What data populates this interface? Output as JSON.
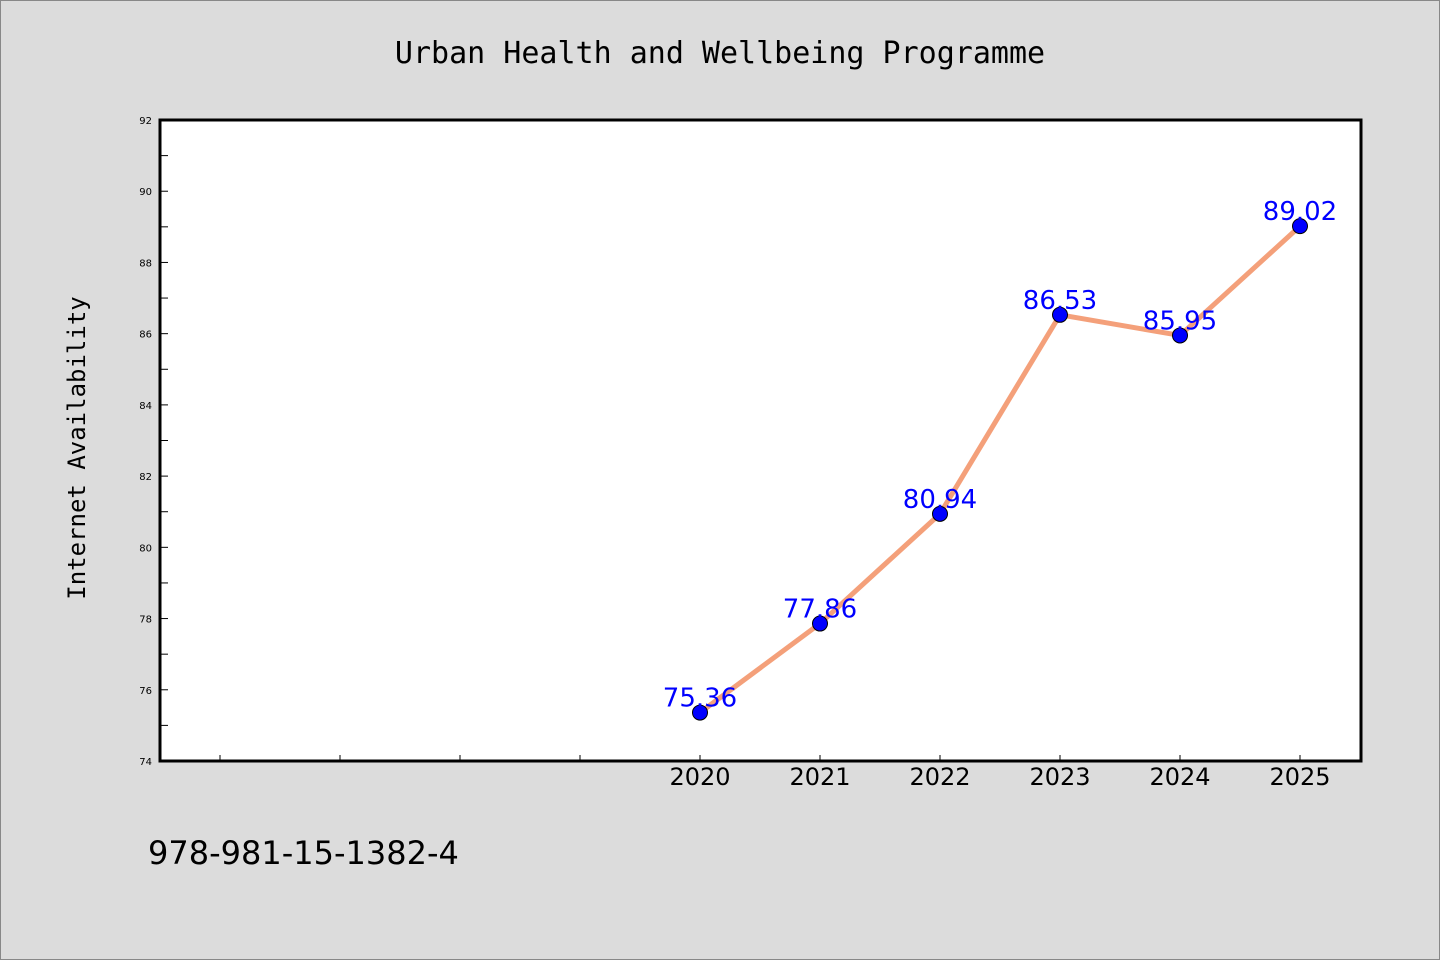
{
  "chart_data": {
    "type": "line",
    "title": "Urban Health and Wellbeing Programme",
    "xlabel": "",
    "ylabel": "Internet Availability",
    "x": [
      "2020",
      "2021",
      "2022",
      "2023",
      "2024",
      "2025"
    ],
    "series": [
      {
        "values": [
          75.36,
          77.86,
          80.94,
          86.53,
          85.95,
          89.02
        ]
      }
    ],
    "data_labels": [
      "75.36",
      "77.86",
      "80.94",
      "86.53",
      "85.95",
      "89.02"
    ],
    "ylim": [
      74,
      92
    ],
    "yticks": [
      "74",
      "76",
      "78",
      "80",
      "82",
      "84",
      "86",
      "88",
      "90",
      "92"
    ],
    "grid": false,
    "line_color": "#f4a07a",
    "marker_color": "#0000ff",
    "label_color": "#0000ff"
  },
  "footer": {
    "isbn": "978-981-15-1382-4"
  }
}
